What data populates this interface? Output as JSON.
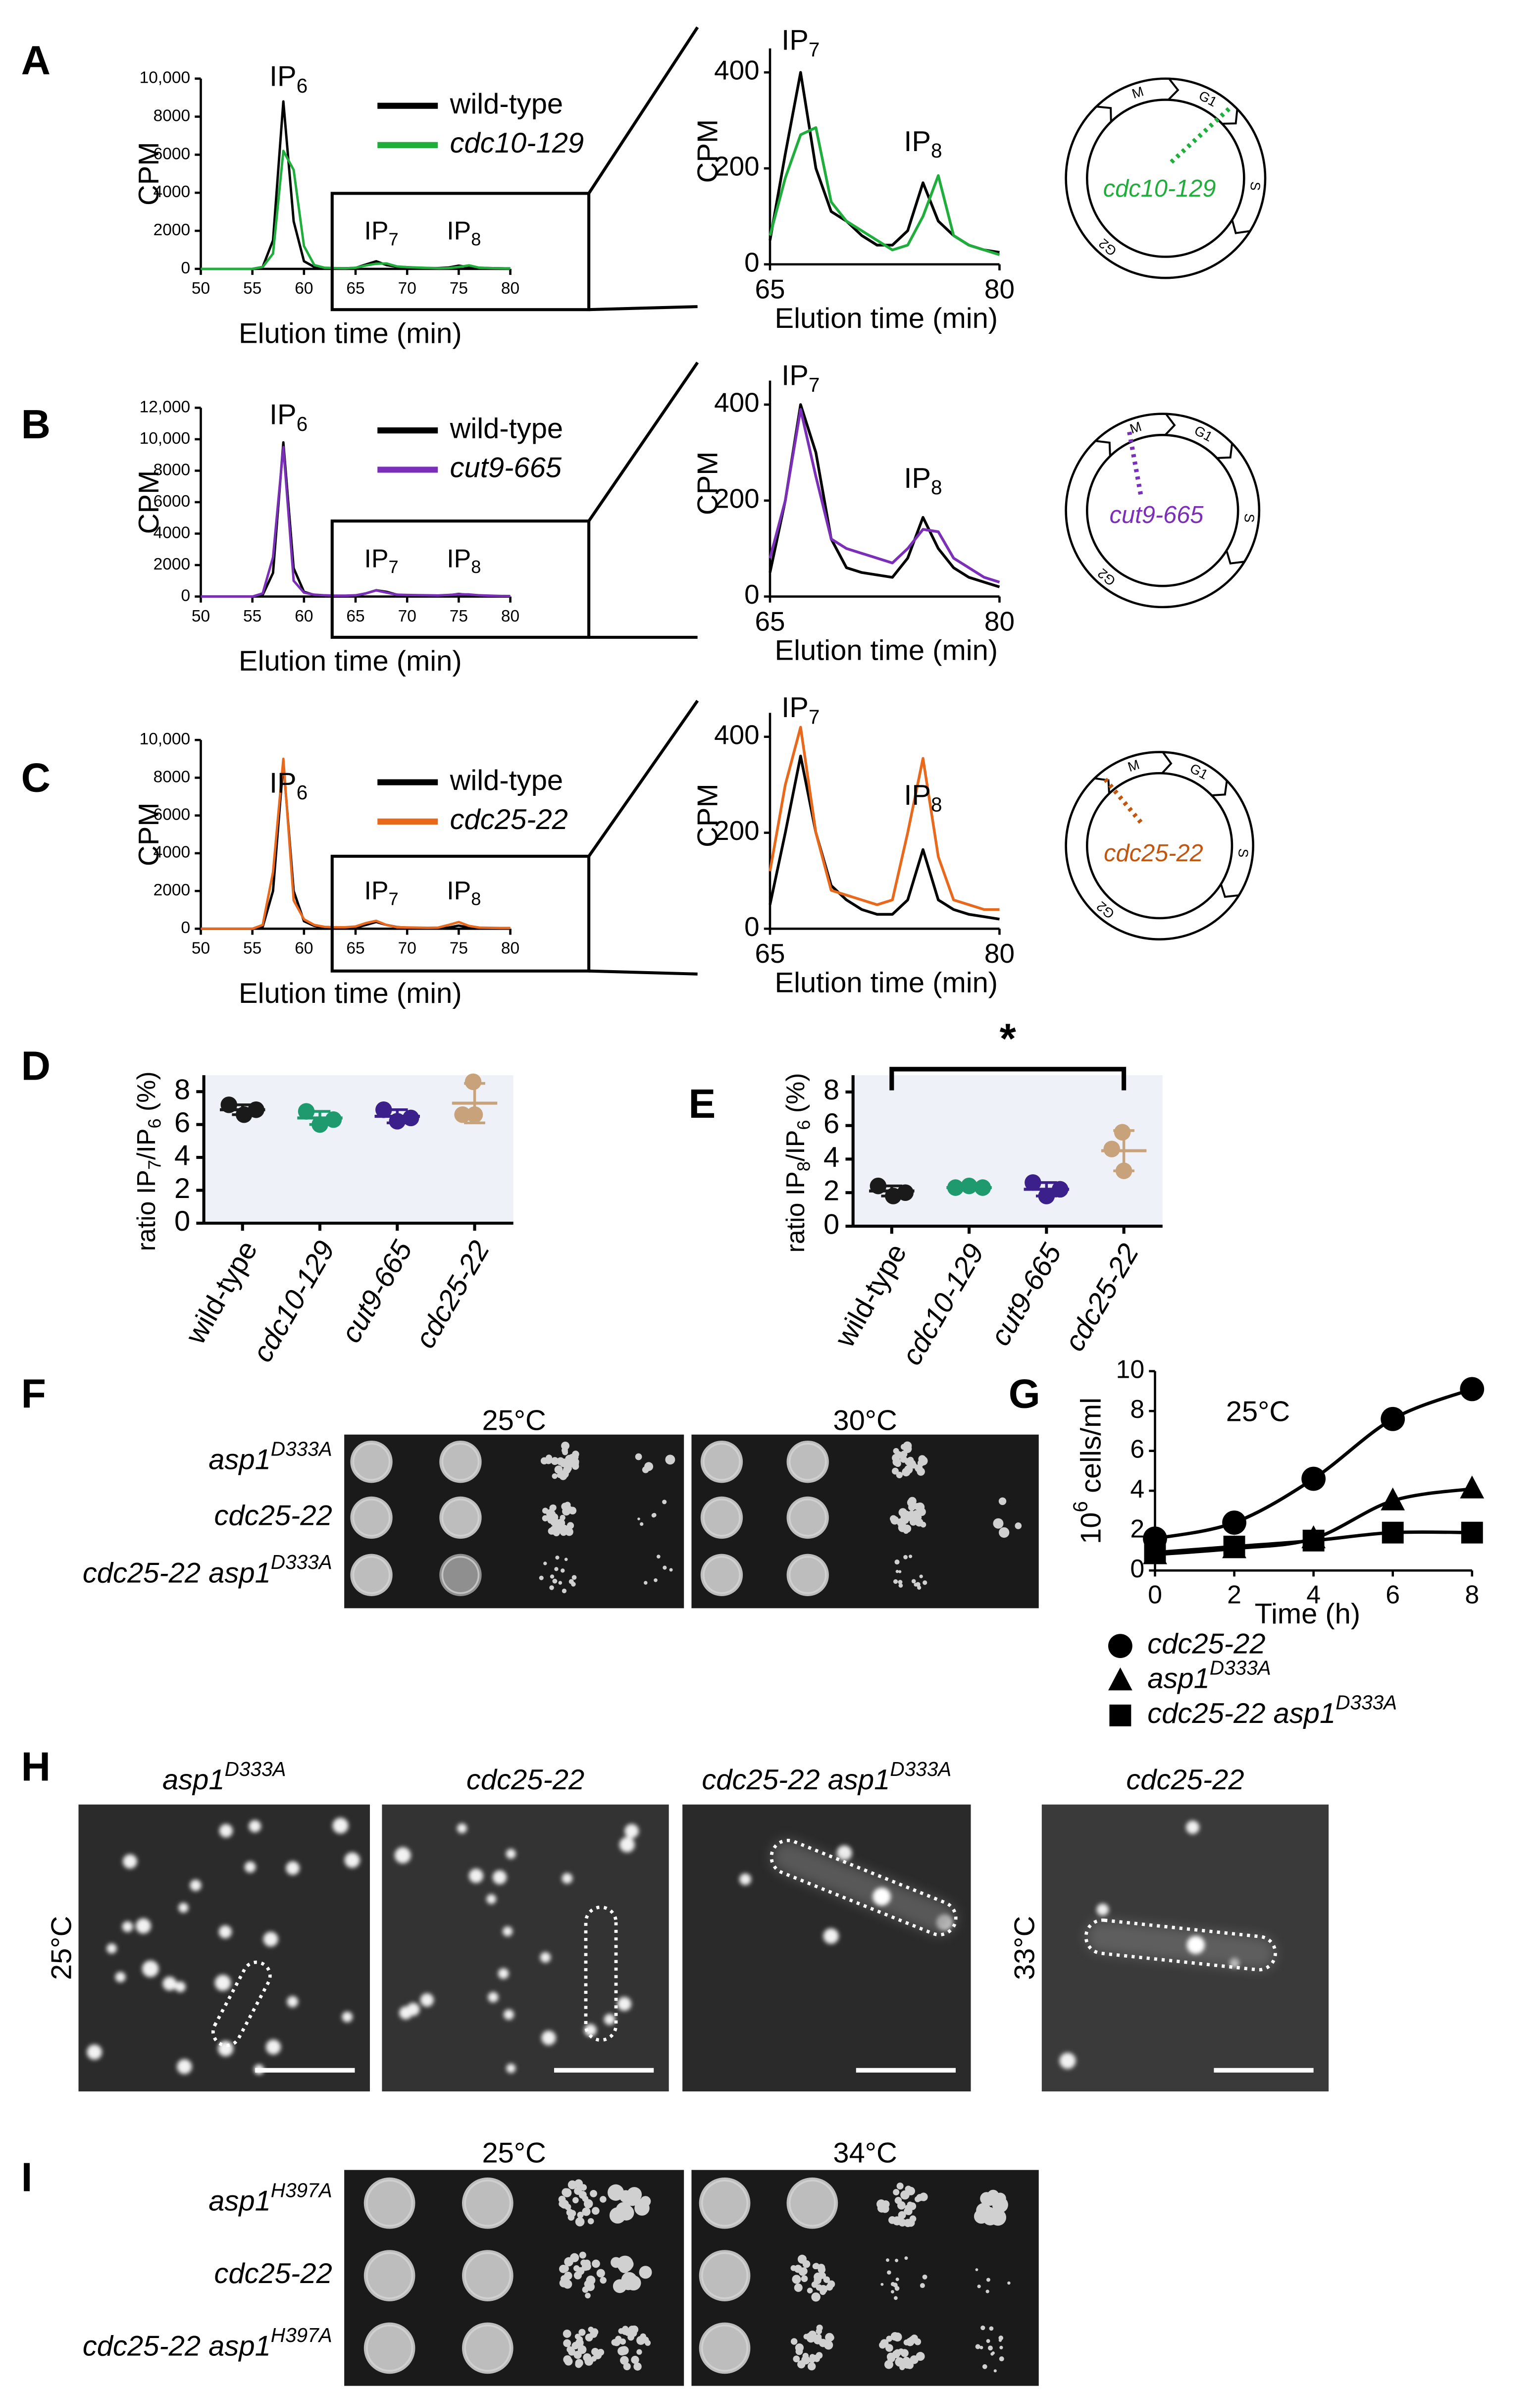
{
  "chart_data": [
    {
      "type": "line",
      "y_label": "CPM",
      "x_label": "Elution time (min)",
      "annotations": [
        [
          {
            "t": "IP"
          },
          {
            "sub": "6"
          }
        ],
        [
          {
            "t": "IP"
          },
          {
            "sub": "7"
          }
        ],
        [
          {
            "t": "IP"
          },
          {
            "sub": "8"
          }
        ]
      ],
      "x": [
        50,
        51,
        52,
        53,
        54,
        55,
        56,
        57,
        58,
        59,
        60,
        61,
        62,
        63,
        64,
        65,
        66,
        67,
        68,
        69,
        70,
        71,
        72,
        73,
        74,
        75,
        76,
        77,
        78,
        79,
        80
      ],
      "xlim": [
        50,
        80
      ],
      "xticks": [
        50,
        55,
        60,
        65,
        70,
        75,
        80
      ],
      "ylim": [
        0,
        10000
      ],
      "yticks": [
        0,
        2000,
        4000,
        6000,
        8000,
        {
          "value": 10000,
          "label": "10,000"
        }
      ],
      "series": [
        {
          "name": "wild-type",
          "color": "#000000",
          "values": [
            0,
            0,
            0,
            0,
            0,
            0,
            100,
            1500,
            8800,
            2500,
            400,
            100,
            50,
            30,
            30,
            50,
            230,
            400,
            200,
            110,
            90,
            60,
            40,
            40,
            70,
            170,
            90,
            60,
            40,
            30,
            25
          ]
        },
        {
          "name": "cdc10-129",
          "color": "#1fae3c",
          "italic": true,
          "values": [
            0,
            0,
            0,
            0,
            0,
            0,
            100,
            800,
            6200,
            5200,
            1200,
            200,
            60,
            40,
            30,
            60,
            180,
            270,
            285,
            130,
            90,
            70,
            50,
            30,
            40,
            100,
            185,
            60,
            40,
            30,
            20
          ]
        }
      ]
    },
    {
      "type": "line",
      "y_label": "CPM",
      "x_label": "Elution time (min)",
      "annotations": [
        [
          {
            "t": "IP"
          },
          {
            "sub": "7"
          }
        ],
        [
          {
            "t": "IP"
          },
          {
            "sub": "8"
          }
        ]
      ],
      "x": [
        65,
        66,
        67,
        68,
        69,
        70,
        71,
        72,
        73,
        74,
        75,
        76,
        77,
        78,
        79,
        80
      ],
      "xlim": [
        65,
        80
      ],
      "xticks": [
        65,
        80
      ],
      "ylim": [
        0,
        450
      ],
      "yticks": [
        0,
        200,
        400
      ],
      "series": [
        {
          "color": "#000000",
          "values": [
            50,
            230,
            400,
            200,
            110,
            90,
            60,
            40,
            40,
            70,
            170,
            90,
            60,
            40,
            30,
            25
          ]
        },
        {
          "color": "#1fae3c",
          "values": [
            60,
            180,
            270,
            285,
            130,
            90,
            70,
            50,
            30,
            40,
            100,
            185,
            60,
            40,
            30,
            20
          ]
        }
      ]
    },
    {
      "type": "line",
      "y_label": "CPM",
      "x_label": "Elution time (min)",
      "annotations": [
        [
          {
            "t": "IP"
          },
          {
            "sub": "6"
          }
        ],
        [
          {
            "t": "IP"
          },
          {
            "sub": "7"
          }
        ],
        [
          {
            "t": "IP"
          },
          {
            "sub": "8"
          }
        ]
      ],
      "x": [
        50,
        51,
        52,
        53,
        54,
        55,
        56,
        57,
        58,
        59,
        60,
        61,
        62,
        63,
        64,
        65,
        66,
        67,
        68,
        69,
        70,
        71,
        72,
        73,
        74,
        75,
        76,
        77,
        78,
        79,
        80
      ],
      "xlim": [
        50,
        80
      ],
      "xticks": [
        50,
        55,
        60,
        65,
        70,
        75,
        80
      ],
      "ylim": [
        0,
        12000
      ],
      "yticks": [
        0,
        2000,
        4000,
        6000,
        8000,
        {
          "value": 10000,
          "label": "10,000"
        },
        {
          "value": 12000,
          "label": "12,000"
        }
      ],
      "series": [
        {
          "name": "wild-type",
          "color": "#000000",
          "values": [
            0,
            0,
            0,
            0,
            0,
            0,
            100,
            1500,
            9800,
            1800,
            300,
            100,
            50,
            30,
            30,
            50,
            200,
            400,
            300,
            120,
            60,
            50,
            45,
            40,
            80,
            165,
            100,
            60,
            40,
            30,
            20
          ]
        },
        {
          "name": "cut9-665",
          "color": "#7b2fb8",
          "italic": true,
          "values": [
            0,
            0,
            0,
            0,
            0,
            0,
            200,
            2500,
            9500,
            1000,
            250,
            120,
            80,
            60,
            60,
            80,
            200,
            390,
            250,
            120,
            100,
            90,
            80,
            70,
            100,
            140,
            135,
            80,
            60,
            40,
            30
          ]
        }
      ]
    },
    {
      "type": "line",
      "y_label": "CPM",
      "x_label": "Elution time (min)",
      "annotations": [
        [
          {
            "t": "IP"
          },
          {
            "sub": "7"
          }
        ],
        [
          {
            "t": "IP"
          },
          {
            "sub": "8"
          }
        ]
      ],
      "x": [
        65,
        66,
        67,
        68,
        69,
        70,
        71,
        72,
        73,
        74,
        75,
        76,
        77,
        78,
        79,
        80
      ],
      "xlim": [
        65,
        80
      ],
      "xticks": [
        65,
        80
      ],
      "ylim": [
        0,
        450
      ],
      "yticks": [
        0,
        200,
        400
      ],
      "series": [
        {
          "color": "#000000",
          "values": [
            50,
            200,
            400,
            300,
            120,
            60,
            50,
            45,
            40,
            80,
            165,
            100,
            60,
            40,
            30,
            20
          ]
        },
        {
          "color": "#7b2fb8",
          "values": [
            80,
            200,
            390,
            250,
            120,
            100,
            90,
            80,
            70,
            100,
            140,
            135,
            80,
            60,
            40,
            30
          ]
        }
      ]
    },
    {
      "type": "line",
      "y_label": "CPM",
      "x_label": "Elution time (min)",
      "annotations": [
        [
          {
            "t": "IP"
          },
          {
            "sub": "6"
          }
        ],
        [
          {
            "t": "IP"
          },
          {
            "sub": "7"
          }
        ],
        [
          {
            "t": "IP"
          },
          {
            "sub": "8"
          }
        ]
      ],
      "x": [
        50,
        51,
        52,
        53,
        54,
        55,
        56,
        57,
        58,
        59,
        60,
        61,
        62,
        63,
        64,
        65,
        66,
        67,
        68,
        69,
        70,
        71,
        72,
        73,
        74,
        75,
        76,
        77,
        78,
        79,
        80
      ],
      "xlim": [
        50,
        80
      ],
      "xticks": [
        50,
        55,
        60,
        65,
        70,
        75,
        80
      ],
      "ylim": [
        0,
        10000
      ],
      "yticks": [
        0,
        2000,
        4000,
        6000,
        8000,
        {
          "value": 10000,
          "label": "10,000"
        }
      ],
      "series": [
        {
          "name": "wild-type",
          "color": "#000000",
          "values": [
            0,
            0,
            0,
            0,
            0,
            0,
            100,
            2000,
            8800,
            2000,
            400,
            150,
            60,
            40,
            40,
            50,
            200,
            360,
            200,
            90,
            60,
            40,
            30,
            30,
            60,
            165,
            60,
            40,
            30,
            25,
            20
          ]
        },
        {
          "name": "cdc25-22",
          "color": "#e8691b",
          "italic": true,
          "values": [
            0,
            0,
            0,
            0,
            0,
            0,
            200,
            3000,
            9000,
            1500,
            500,
            200,
            100,
            80,
            80,
            120,
            300,
            420,
            200,
            80,
            70,
            60,
            50,
            60,
            200,
            355,
            150,
            60,
            50,
            40,
            40
          ]
        }
      ]
    },
    {
      "type": "line",
      "y_label": "CPM",
      "x_label": "Elution time (min)",
      "annotations": [
        [
          {
            "t": "IP"
          },
          {
            "sub": "7"
          }
        ],
        [
          {
            "t": "IP"
          },
          {
            "sub": "8"
          }
        ]
      ],
      "x": [
        65,
        66,
        67,
        68,
        69,
        70,
        71,
        72,
        73,
        74,
        75,
        76,
        77,
        78,
        79,
        80
      ],
      "xlim": [
        65,
        80
      ],
      "xticks": [
        65,
        80
      ],
      "ylim": [
        0,
        450
      ],
      "yticks": [
        0,
        200,
        400
      ],
      "series": [
        {
          "color": "#000000",
          "values": [
            50,
            200,
            360,
            200,
            90,
            60,
            40,
            30,
            30,
            60,
            165,
            60,
            40,
            30,
            25,
            20
          ]
        },
        {
          "color": "#e8691b",
          "values": [
            120,
            300,
            420,
            200,
            80,
            70,
            60,
            50,
            60,
            200,
            355,
            150,
            60,
            50,
            40,
            40
          ]
        }
      ]
    },
    {
      "type": "dot",
      "y_label": [
        {
          "t": "ratio IP"
        },
        {
          "sub": "7"
        },
        {
          "t": "/IP"
        },
        {
          "sub": "6"
        },
        {
          "t": " (%)"
        }
      ],
      "categories": [
        "wild-type",
        "cdc10-129",
        "cut9-665",
        "cdc25-22"
      ],
      "colors": [
        "#1a1a1a",
        "#1e9a6e",
        "#3b1f8a",
        "#c8a27a"
      ],
      "points": [
        [
          7.2,
          6.6,
          6.9
        ],
        [
          6.8,
          6.0,
          6.3
        ],
        [
          6.9,
          6.2,
          6.4
        ],
        [
          8.6,
          6.6,
          6.6
        ]
      ],
      "means": [
        6.9,
        6.4,
        6.5,
        7.3
      ],
      "sd": [
        0.3,
        0.4,
        0.4,
        1.2
      ],
      "ylim": [
        0,
        9
      ],
      "yticks": [
        0,
        2,
        4,
        6,
        8
      ],
      "background": "#eef1f8"
    },
    {
      "type": "dot",
      "y_label": [
        {
          "t": "ratio IP"
        },
        {
          "sub": "8"
        },
        {
          "t": "/IP"
        },
        {
          "sub": "6"
        },
        {
          "t": " (%)"
        }
      ],
      "categories": [
        "wild-type",
        "cdc10-129",
        "cut9-665",
        "cdc25-22"
      ],
      "colors": [
        "#1a1a1a",
        "#1e9a6e",
        "#3b1f8a",
        "#c8a27a"
      ],
      "points": [
        [
          2.4,
          1.8,
          2.0
        ],
        [
          2.3,
          2.4,
          2.3
        ],
        [
          2.6,
          1.8,
          2.2
        ],
        [
          5.6,
          4.6,
          3.3
        ]
      ],
      "means": [
        2.1,
        2.3,
        2.2,
        4.5
      ],
      "sd": [
        0.3,
        0.1,
        0.4,
        1.2
      ],
      "significance_label": "*",
      "ylim": [
        0,
        9
      ],
      "yticks": [
        0,
        2,
        4,
        6,
        8
      ],
      "background": "#eef1f8"
    },
    {
      "type": "line",
      "annotation": "25°C",
      "x_label": "Time (h)",
      "y_label": [
        {
          "t": "10"
        },
        {
          "sup": "6"
        },
        {
          "t": " cells/ml"
        }
      ],
      "x": [
        0,
        2,
        4,
        6,
        8
      ],
      "xlim": [
        0,
        8
      ],
      "xticks": [
        0,
        2,
        4,
        6,
        8
      ],
      "ylim": [
        0,
        10
      ],
      "yticks": [
        0,
        2,
        4,
        6,
        8,
        10
      ],
      "series": [
        {
          "name": [
            {
              "t": "cdc25-22"
            }
          ],
          "marker": "circle",
          "italic": true,
          "color": "#000000",
          "values": [
            1.6,
            2.4,
            4.6,
            7.6,
            9.1
          ]
        },
        {
          "name": [
            {
              "t": "asp1"
            },
            {
              "sup": "D333A"
            }
          ],
          "marker": "triangle",
          "italic": true,
          "color": "#000000",
          "values": [
            0.8,
            1.1,
            1.6,
            3.5,
            4.1
          ]
        },
        {
          "name": [
            {
              "t": "cdc25-22 asp1"
            },
            {
              "sup": "D333A"
            }
          ],
          "marker": "square",
          "italic": true,
          "color": "#000000",
          "values": [
            0.9,
            1.2,
            1.5,
            1.9,
            1.9
          ]
        }
      ]
    }
  ],
  "figure": {
    "panel_labels": [
      "A",
      "B",
      "C",
      "D",
      "E",
      "F",
      "G",
      "H",
      "I"
    ],
    "cell_cycle": [
      {
        "phases": [
          "M",
          "G1",
          "S",
          "G2"
        ],
        "mutant": "cdc10-129",
        "color": "#1fae3c"
      },
      {
        "phases": [
          "M",
          "G1",
          "S",
          "G2"
        ],
        "mutant": "cut9-665",
        "color": "#7b2fb8"
      },
      {
        "phases": [
          "M",
          "G1",
          "S",
          "G2"
        ],
        "mutant": "cdc25-22",
        "color": "#c0560f"
      }
    ],
    "spot_F": {
      "temps": [
        "25°C",
        "30°C"
      ],
      "strains": [
        [
          {
            "t": "asp1"
          },
          {
            "sup": "D333A"
          }
        ],
        [
          {
            "t": "cdc25-22"
          }
        ],
        [
          {
            "t": "cdc25-22 asp1"
          },
          {
            "sup": "D333A"
          }
        ]
      ]
    },
    "micro_H": {
      "titles": [
        [
          {
            "t": "asp1"
          },
          {
            "sup": "D333A"
          }
        ],
        [
          {
            "t": "cdc25-22"
          }
        ],
        [
          {
            "t": "cdc25-22 asp1"
          },
          {
            "sup": "D333A"
          }
        ],
        [
          {
            "t": "cdc25-22"
          }
        ]
      ],
      "temps": [
        "25°C",
        "33°C"
      ]
    },
    "spot_I": {
      "temps": [
        "25°C",
        "34°C"
      ],
      "strains": [
        [
          {
            "t": "asp1"
          },
          {
            "sup": "H397A"
          }
        ],
        [
          {
            "t": "cdc25-22"
          }
        ],
        [
          {
            "t": "cdc25-22 asp1"
          },
          {
            "sup": "H397A"
          }
        ]
      ]
    }
  }
}
